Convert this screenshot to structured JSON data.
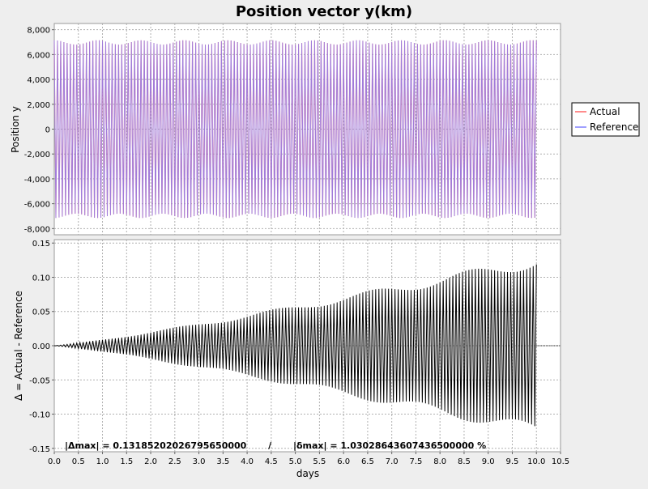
{
  "chart_data": [
    {
      "type": "line",
      "title": "Position vector y(km)",
      "xlabel": "",
      "ylabel": "Position y",
      "xlim": [
        0,
        10.5
      ],
      "ylim": [
        -8500,
        8500
      ],
      "y_ticks": [
        "8,000",
        "6,000",
        "4,000",
        "2,000",
        "0",
        "-2,000",
        "-4,000",
        "-6,000",
        "-8,000"
      ],
      "y_tick_values": [
        8000,
        6000,
        4000,
        2000,
        0,
        -2000,
        -4000,
        -6000,
        -8000
      ],
      "grid": true,
      "legend_position": "right",
      "series": [
        {
          "name": "Actual",
          "color": "#ff6666",
          "amplitude_min": 6800,
          "amplitude_max": 7150,
          "x_start": 0,
          "x_end": 10,
          "cycles": 150
        },
        {
          "name": "Reference",
          "color": "#8080ff",
          "amplitude_min": 6800,
          "amplitude_max": 7150,
          "x_start": 0,
          "x_end": 10,
          "cycles": 150
        }
      ]
    },
    {
      "type": "line",
      "xlabel": "days",
      "ylabel": "Δ = Actual - Reference",
      "xlim": [
        0,
        10.5
      ],
      "ylim": [
        -0.155,
        0.155
      ],
      "x_ticks": [
        "0.0",
        "0.5",
        "1.0",
        "1.5",
        "2.0",
        "2.5",
        "3.0",
        "3.5",
        "4.0",
        "4.5",
        "5.0",
        "5.5",
        "6.0",
        "6.5",
        "7.0",
        "7.5",
        "8.0",
        "8.5",
        "9.0",
        "9.5",
        "10.0",
        "10.5"
      ],
      "x_tick_values": [
        0,
        0.5,
        1,
        1.5,
        2,
        2.5,
        3,
        3.5,
        4,
        4.5,
        5,
        5.5,
        6,
        6.5,
        7,
        7.5,
        8,
        8.5,
        9,
        9.5,
        10,
        10.5
      ],
      "y_ticks": [
        "0.15",
        "0.10",
        "0.05",
        "0.00",
        "-0.05",
        "-0.10",
        "-0.15"
      ],
      "y_tick_values": [
        0.15,
        0.1,
        0.05,
        0,
        -0.05,
        -0.1,
        -0.15
      ],
      "grid": true,
      "series": [
        {
          "color": "#000000",
          "max_abs_delta": 0.1318,
          "x_start": 0,
          "x_end": 10,
          "cycles": 150
        }
      ],
      "annotation": "|Δmax| = 0.13185202026795650000       /       |δmax| = 1.03028643607436500000 %"
    }
  ]
}
